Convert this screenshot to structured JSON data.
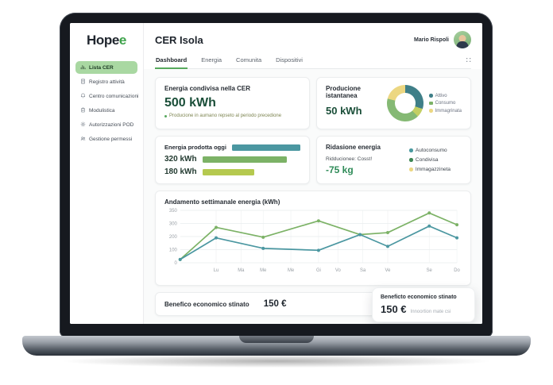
{
  "colors": {
    "accent_green": "#43a047",
    "dark_green_value": "#1a4e38",
    "teal": "#4b97a1",
    "mid_green": "#7cb266",
    "lime": "#b5c94f",
    "yellow": "#ecd782",
    "donut_teal": "#3f7f88",
    "donut_green": "#85b974",
    "active_pill": "#a9d8a2"
  },
  "sidebar": {
    "logo": {
      "main": "Hope",
      "accent": "e"
    },
    "items": [
      {
        "label": "Lista CER",
        "icon": "bar-chart-icon",
        "active": true
      },
      {
        "label": "Registro attività",
        "icon": "document-icon",
        "active": false
      },
      {
        "label": "Centro comunicazioni",
        "icon": "bell-icon",
        "active": false
      },
      {
        "label": "Modulistica",
        "icon": "clipboard-icon",
        "active": false
      },
      {
        "label": "Autorizzazioni POD",
        "icon": "gear-icon",
        "active": false
      },
      {
        "label": "Gestione permessi",
        "icon": "users-icon",
        "active": false
      }
    ]
  },
  "header": {
    "title": "CER Isola",
    "user": "Mario Rispoli"
  },
  "tabs": [
    {
      "label": "Dashboard",
      "active": true
    },
    {
      "label": "Energia",
      "active": false
    },
    {
      "label": "Comunita",
      "active": false
    },
    {
      "label": "Dispositivi",
      "active": false
    }
  ],
  "cards": {
    "shared": {
      "title": "Energia condivisa nella CER",
      "value": "500 kWh",
      "note": "Producione in aumano repseto al periodo precedione"
    },
    "instant": {
      "title": "Producione istantanea",
      "value": "50 kWh",
      "donut_segments": [
        {
          "label": "Attivo",
          "color": "#3f7f88",
          "pct": 30
        },
        {
          "label": "Lime",
          "color": "#c3cf63",
          "pct": 8
        },
        {
          "label": "Consumo",
          "color": "#85b974",
          "pct": 41
        },
        {
          "label": "Immagrinata",
          "color": "#ecd782",
          "pct": 21
        }
      ],
      "legend": [
        {
          "label": "Attivo",
          "color": "#3f7f88",
          "shape": "circle"
        },
        {
          "label": "Consumo",
          "color": "#7cb266",
          "shape": "square"
        },
        {
          "label": "Immagrinata",
          "color": "#ecd782",
          "shape": "circle"
        }
      ]
    },
    "produced": {
      "title": "Energia prodotta oggi",
      "bars": [
        {
          "label": "Energia prodotta oggi",
          "color": "#4b97a1",
          "frac": 0.52,
          "title_row": true
        },
        {
          "label": "320 kWh",
          "color": "#7cb266",
          "frac": 0.62,
          "title_row": false
        },
        {
          "label": "180 kWh",
          "color": "#b5c94f",
          "frac": 0.38,
          "title_row": false
        }
      ]
    },
    "reduction": {
      "title": "Ridasione energia",
      "subtitle": "Ridducionee: Cosst!",
      "value": "-75 kg",
      "legend": [
        {
          "label": "Autoconsumo",
          "color": "#4b9aa0"
        },
        {
          "label": "Condivisa",
          "color": "#3e8654"
        },
        {
          "label": "Immagazzineta",
          "color": "#ecd782"
        }
      ]
    }
  },
  "chart_data": {
    "type": "line",
    "title": "Andamento settimanale energia (kWh)",
    "x_labels": [
      "Lu",
      "Ma",
      "Me",
      "Me",
      "Gi",
      "Vo",
      "Sa",
      "Ve",
      "Se",
      "Do"
    ],
    "x_label_pos": [
      1.3,
      2.2,
      3,
      4,
      5,
      5.7,
      6.6,
      7.5,
      9,
      10
    ],
    "x_max": 10,
    "yticks": [
      0,
      100,
      200,
      300,
      350
    ],
    "grid": true,
    "legend_position": "none",
    "series": [
      {
        "name": "Produzione",
        "color": "#7cb266",
        "points": [
          [
            0,
            25
          ],
          [
            1.3,
            270
          ],
          [
            3,
            195
          ],
          [
            5,
            310
          ],
          [
            6.5,
            215
          ],
          [
            7.5,
            230
          ],
          [
            9,
            340
          ],
          [
            10,
            290
          ]
        ]
      },
      {
        "name": "Consumo",
        "color": "#4b97a1",
        "points": [
          [
            0,
            25
          ],
          [
            1.3,
            190
          ],
          [
            3,
            110
          ],
          [
            5,
            95
          ],
          [
            6.5,
            215
          ],
          [
            7.5,
            125
          ],
          [
            9,
            280
          ],
          [
            10,
            190
          ]
        ]
      }
    ]
  },
  "benefit": {
    "label": "Benefico economico stinato",
    "value": "150 €"
  },
  "benefit_card": {
    "title": "Beneficto economico stinato",
    "value": "150 €",
    "note": "Innoortion mate csi"
  }
}
